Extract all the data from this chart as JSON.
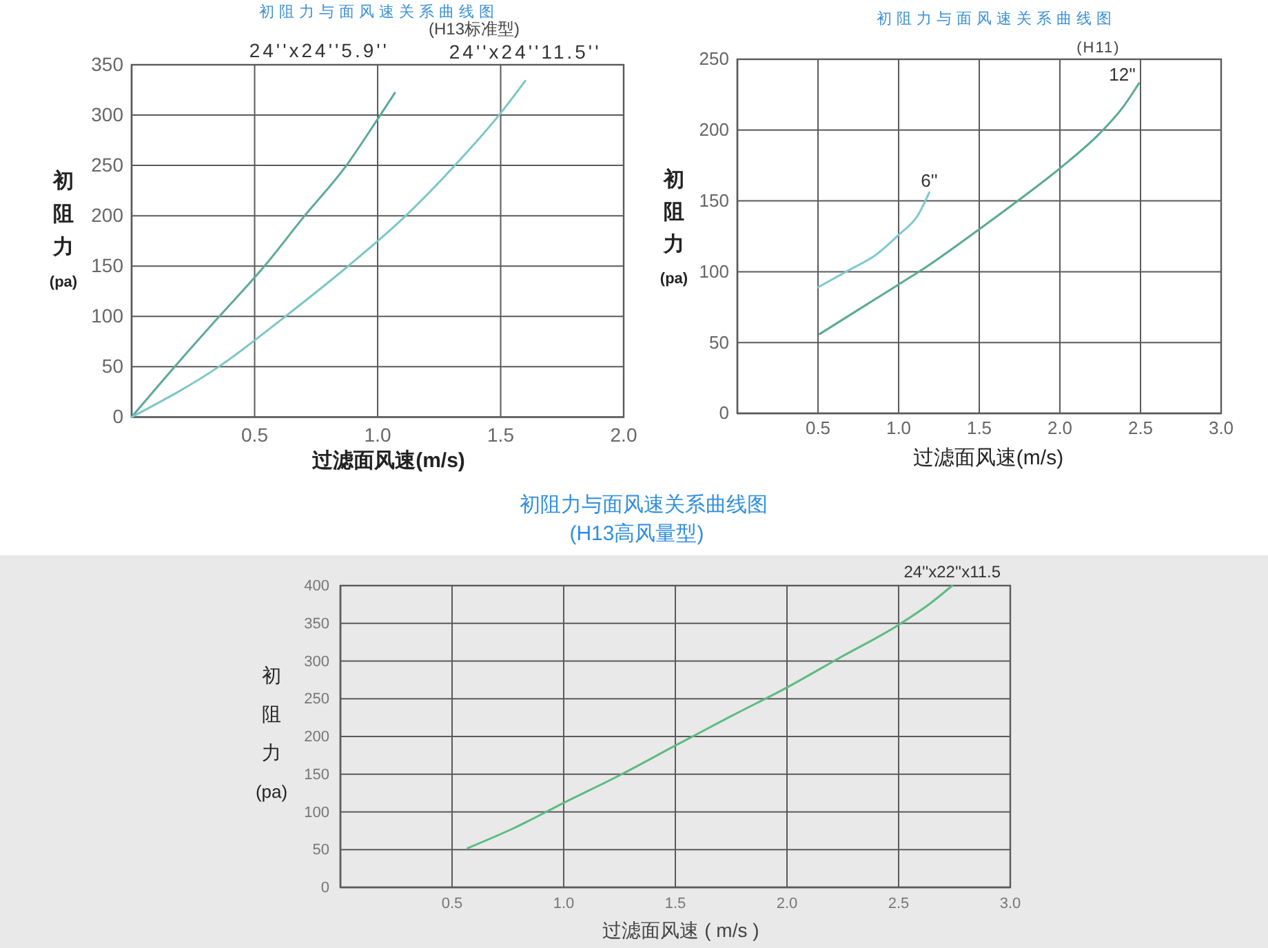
{
  "chart_data": [
    {
      "type": "line",
      "title": "初阻力与面风速关系曲线图",
      "subtitle": "(H13标准型)",
      "xlabel": "过滤面风速(m/s)",
      "ylabel": "初阻力(pa)",
      "xlim": [
        0,
        2.0
      ],
      "xticks": [
        0.5,
        {
          "value": 1,
          "label": "1.0"
        },
        1.5,
        {
          "value": 2,
          "label": "2.0"
        }
      ],
      "ylim": [
        0,
        350
      ],
      "yticks": [
        0,
        50,
        100,
        150,
        200,
        250,
        300,
        350
      ],
      "grid": true,
      "series": [
        {
          "name": "24''x24''5.9''",
          "color": "#5ea99c",
          "x": [
            0,
            0.25,
            0.36,
            0.54,
            0.7,
            0.87,
            1.0,
            1.07
          ],
          "values": [
            0,
            71,
            101,
            150,
            199,
            249,
            296,
            322
          ]
        },
        {
          "name": "24''x24''11.5''",
          "color": "#7cc6c6",
          "x": [
            0,
            0.36,
            0.63,
            0.88,
            1.11,
            1.31,
            1.5,
            1.6
          ],
          "values": [
            0,
            51,
            101,
            150,
            199,
            249,
            302,
            334
          ]
        }
      ]
    },
    {
      "type": "line",
      "title": "初阻力与面风速关系曲线图",
      "subtitle": "(H11)",
      "xlabel": "过滤面风速(m/s)",
      "ylabel": "初阻力(pa)",
      "xlim": [
        0,
        3.0
      ],
      "xticks": [
        0.5,
        {
          "value": 1,
          "label": "1.0"
        },
        1.5,
        {
          "value": 2,
          "label": "2.0"
        },
        2.5,
        {
          "value": 3,
          "label": "3.0"
        }
      ],
      "ylim": [
        0,
        250
      ],
      "yticks": [
        0,
        50,
        100,
        150,
        200,
        250
      ],
      "grid": true,
      "series": [
        {
          "name": "6''",
          "color": "#7ec8d0",
          "x": [
            0.5,
            0.69,
            0.86,
            1.0,
            1.12,
            1.19
          ],
          "values": [
            89,
            101,
            112,
            126,
            140,
            156
          ]
        },
        {
          "name": "12''",
          "color": "#5aab8c",
          "x": [
            0.51,
            1.0,
            1.14,
            1.5,
            1.75,
            2.0,
            2.25,
            2.39,
            2.49
          ],
          "values": [
            56,
            91,
            101,
            130,
            151,
            173,
            198,
            216,
            233
          ]
        }
      ]
    },
    {
      "type": "line",
      "title": "初阻力与面风速关系曲线图",
      "subtitle": "(H13高风量型)",
      "xlabel": "过滤面风速 ( m/s )",
      "ylabel": "初阻力(pa)",
      "xlim": [
        0,
        3.0
      ],
      "xticks": [
        0.5,
        {
          "value": 1,
          "label": "1.0"
        },
        1.5,
        {
          "value": 2,
          "label": "2.0"
        },
        2.5,
        {
          "value": 3,
          "label": "3.0"
        }
      ],
      "ylim": [
        0,
        400
      ],
      "yticks": [
        0,
        50,
        100,
        150,
        200,
        250,
        300,
        350,
        400
      ],
      "grid": true,
      "series": [
        {
          "name": "24''x22''x11.5",
          "color": "#5cbb80",
          "x": [
            0.57,
            0.78,
            1.0,
            1.26,
            1.5,
            1.75,
            2.0,
            2.24,
            2.5,
            2.64,
            2.74
          ],
          "values": [
            52,
            79,
            112,
            150,
            188,
            227,
            265,
            305,
            348,
            376,
            400
          ]
        }
      ]
    }
  ]
}
